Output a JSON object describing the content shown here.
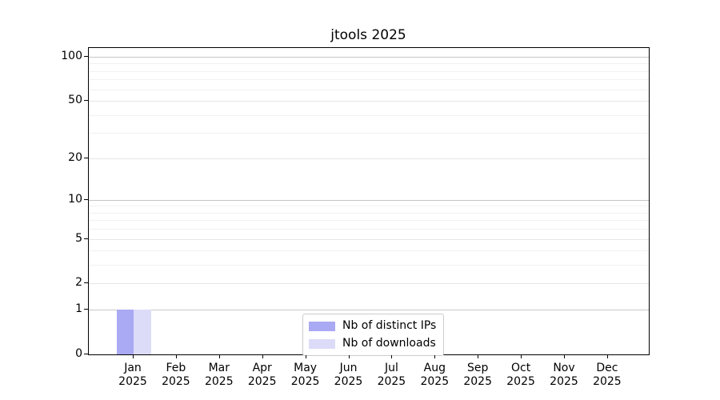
{
  "title": "jtools 2025",
  "chart_data": {
    "type": "bar",
    "title": "jtools 2025",
    "xlabel": "",
    "ylabel": "",
    "yscale": "log1p",
    "grid": true,
    "ylim": [
      0,
      115
    ],
    "yticks": [
      0,
      1,
      2,
      5,
      10,
      20,
      50,
      100
    ],
    "decade_yticks": [
      1,
      10,
      100
    ],
    "minor_yticks": [
      3,
      4,
      6,
      7,
      8,
      9,
      30,
      40,
      60,
      70,
      80,
      90
    ],
    "categories": [
      {
        "line1": "Jan",
        "line2": "2025"
      },
      {
        "line1": "Feb",
        "line2": "2025"
      },
      {
        "line1": "Mar",
        "line2": "2025"
      },
      {
        "line1": "Apr",
        "line2": "2025"
      },
      {
        "line1": "May",
        "line2": "2025"
      },
      {
        "line1": "Jun",
        "line2": "2025"
      },
      {
        "line1": "Jul",
        "line2": "2025"
      },
      {
        "line1": "Aug",
        "line2": "2025"
      },
      {
        "line1": "Sep",
        "line2": "2025"
      },
      {
        "line1": "Oct",
        "line2": "2025"
      },
      {
        "line1": "Nov",
        "line2": "2025"
      },
      {
        "line1": "Dec",
        "line2": "2025"
      }
    ],
    "series": [
      {
        "name": "Nb of distinct IPs",
        "color": "#a9a9f4",
        "values": [
          1,
          0,
          0,
          0,
          0,
          0,
          0,
          0,
          0,
          0,
          0,
          0
        ]
      },
      {
        "name": "Nb of downloads",
        "color": "#dcdcf9",
        "values": [
          1,
          0,
          0,
          0,
          0,
          0,
          0,
          0,
          0,
          0,
          0,
          0
        ]
      }
    ],
    "legend_position": "lower center"
  }
}
